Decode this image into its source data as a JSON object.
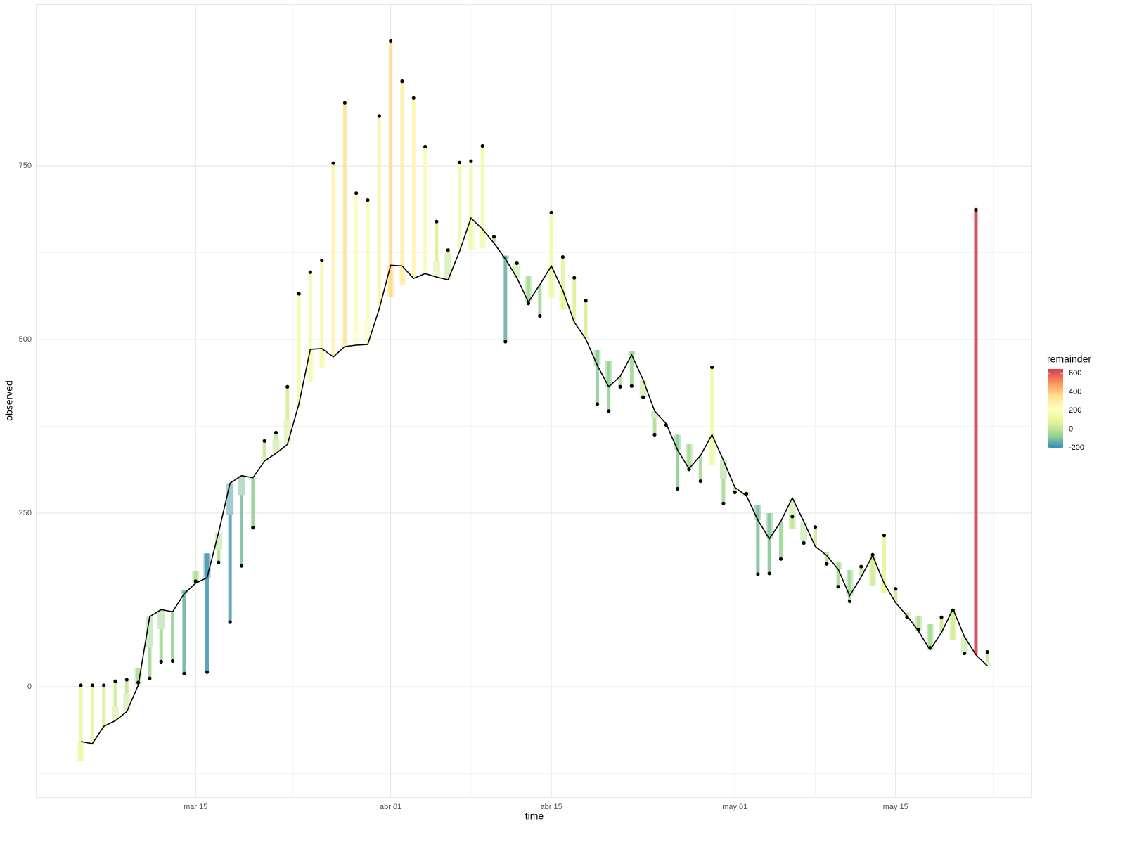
{
  "chart_data": {
    "type": "decomposition",
    "x_label": "time",
    "y_label": "observed",
    "legend_title": "remainder",
    "categories": [
      null,
      null,
      null,
      null,
      null,
      null,
      null,
      null,
      null,
      null,
      "mar 15",
      null,
      null,
      null,
      null,
      null,
      null,
      null,
      null,
      null,
      null,
      null,
      null,
      null,
      null,
      null,
      null,
      "abr 01",
      null,
      null,
      null,
      null,
      null,
      null,
      null,
      null,
      null,
      null,
      null,
      null,
      null,
      "abr 15",
      null,
      null,
      null,
      null,
      null,
      null,
      null,
      null,
      null,
      null,
      null,
      null,
      null,
      null,
      null,
      "may 01",
      null,
      null,
      null,
      null,
      null,
      null,
      null,
      null,
      null,
      null,
      null,
      null,
      null,
      "may 15",
      null,
      null,
      null,
      null,
      null,
      null,
      null,
      null
    ],
    "trend": [
      -79,
      -82,
      -57,
      -49,
      -36,
      2,
      101,
      111,
      108,
      134,
      149,
      157,
      222,
      293,
      304,
      301,
      325,
      336,
      349,
      407,
      486,
      487,
      475,
      490,
      492,
      493,
      544,
      607,
      606,
      588,
      595,
      590,
      586,
      627,
      675,
      659,
      639,
      616,
      589,
      554,
      579,
      606,
      571,
      525,
      501,
      463,
      432,
      447,
      478,
      442,
      397,
      379,
      341,
      314,
      333,
      363,
      326,
      287,
      275,
      240,
      213,
      238,
      272,
      238,
      202,
      189,
      169,
      131,
      158,
      189,
      149,
      121,
      102,
      80,
      53,
      78,
      112,
      72,
      46,
      30
    ],
    "season": [
      -28,
      -2,
      -3,
      20,
      26,
      25,
      -43,
      -28,
      0,
      5,
      18,
      35,
      -25,
      -45,
      -28,
      -2,
      6,
      20,
      35,
      -5,
      -47,
      -28,
      0,
      5,
      22,
      37,
      0,
      -46,
      -28,
      0,
      5,
      22,
      38,
      0,
      -46,
      -27,
      0,
      5,
      22,
      37,
      0,
      -46,
      -28,
      0,
      5,
      22,
      37,
      0,
      5,
      -25,
      -10,
      0,
      22,
      36,
      0,
      -44,
      -27,
      0,
      5,
      22,
      37,
      0,
      -45,
      -27,
      0,
      5,
      10,
      37,
      0,
      -44,
      -14,
      0,
      5,
      22,
      37,
      0,
      -45,
      -24,
      0,
      5
    ],
    "remainder": [
      109,
      86,
      62,
      37,
      20,
      -21,
      -46,
      -47,
      -71,
      -120,
      -15,
      -171,
      -18,
      -155,
      -102,
      -70,
      23,
      10,
      48,
      164,
      158,
      155,
      279,
      346,
      197,
      171,
      278,
      369,
      294,
      260,
      178,
      58,
      5,
      128,
      128,
      147,
      9,
      -124,
      -1,
      -39,
      -45,
      123,
      76,
      64,
      50,
      -78,
      -72,
      -15,
      -50,
      0,
      -24,
      -2,
      -78,
      -37,
      -37,
      141,
      -35,
      -7,
      -2,
      -100,
      -87,
      -54,
      18,
      -4,
      28,
      -17,
      -35,
      -45,
      15,
      45,
      83,
      20,
      -7,
      -20,
      -34,
      22,
      43,
      0,
      641,
      15
    ],
    "observed": [
      2,
      2,
      2,
      8,
      10,
      6,
      12,
      36,
      37,
      19,
      152,
      21,
      179,
      93,
      174,
      229,
      354,
      366,
      432,
      566,
      597,
      614,
      754,
      841,
      711,
      701,
      822,
      930,
      872,
      848,
      778,
      670,
      629,
      755,
      757,
      779,
      648,
      497,
      610,
      552,
      534,
      683,
      619,
      589,
      556,
      407,
      397,
      432,
      433,
      417,
      363,
      377,
      285,
      313,
      296,
      460,
      264,
      280,
      278,
      162,
      163,
      184,
      245,
      207,
      230,
      177,
      144,
      123,
      173,
      190,
      218,
      141,
      100,
      82,
      56,
      100,
      110,
      48,
      687,
      50
    ],
    "ylim": [
      -160,
      983
    ],
    "yticks": [
      0,
      250,
      500,
      750
    ],
    "grid": true,
    "color_lim": [
      -205,
      645
    ],
    "color_ticks": [
      -200,
      0,
      200,
      400,
      600
    ],
    "color_stops": [
      "#3288bd",
      "#99d594",
      "#e6f598",
      "#ffffbf",
      "#fee08b",
      "#fc8d59",
      "#d53e4f"
    ],
    "line_color": "#000000"
  }
}
